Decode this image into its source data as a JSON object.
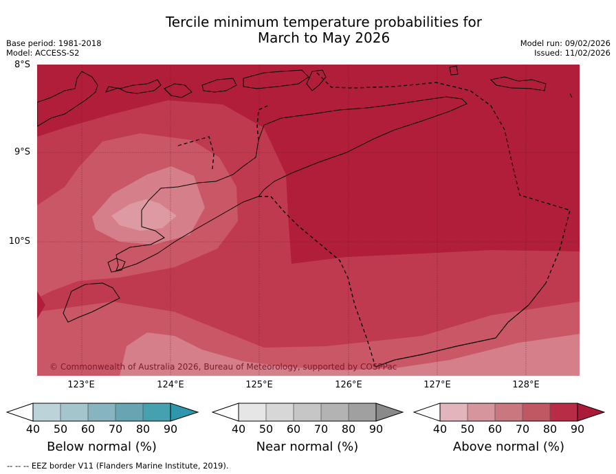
{
  "title": {
    "line1": "Tercile minimum temperature probabilities for",
    "line2": "March to May 2026"
  },
  "meta": {
    "base_period": "Base period: 1981-2018",
    "model": "Model: ACCESS-S2",
    "model_run": "Model run: 09/02/2026",
    "issued": "Issued: 11/02/2026"
  },
  "map": {
    "lat_labels": [
      "8°S",
      "9°S",
      "10°S"
    ],
    "lon_labels": [
      "123°E",
      "124°E",
      "125°E",
      "126°E",
      "127°E",
      "128°E"
    ],
    "copyright": "© Commonwealth of Australia 2026, Bureau of Meteorology, supported by COSPPac",
    "colors": {
      "above_80_90": "#b01e39",
      "above_70_80": "#bf3a4f",
      "above_60_70": "#c95766",
      "above_50_60": "#d47f8a",
      "above_40_50": "#dd9aa2",
      "coast": "#000000",
      "eez": "#000000"
    }
  },
  "colorbars": [
    {
      "label": "Below normal (%)",
      "ticks": [
        "40",
        "50",
        "60",
        "70",
        "80",
        "90"
      ],
      "colors": [
        "#bcd3da",
        "#a5c5cc",
        "#87b5bf",
        "#68a5b2",
        "#45a0b0",
        "#2f97ac"
      ]
    },
    {
      "label": "Near normal (%)",
      "ticks": [
        "40",
        "50",
        "60",
        "70",
        "80",
        "90"
      ],
      "colors": [
        "#e6e6e6",
        "#d7d7d7",
        "#c6c6c6",
        "#b3b3b3",
        "#a0a0a0",
        "#8a8a8a"
      ]
    },
    {
      "label": "Above normal (%)",
      "ticks": [
        "40",
        "50",
        "60",
        "70",
        "80",
        "90"
      ],
      "colors": [
        "#e2b5bc",
        "#d6949d",
        "#ca7880",
        "#c05864",
        "#b82d45",
        "#ab1a38"
      ]
    }
  ],
  "footer": "--  --  -- EEZ border V11 (Flanders Marine Institute, 2019)."
}
